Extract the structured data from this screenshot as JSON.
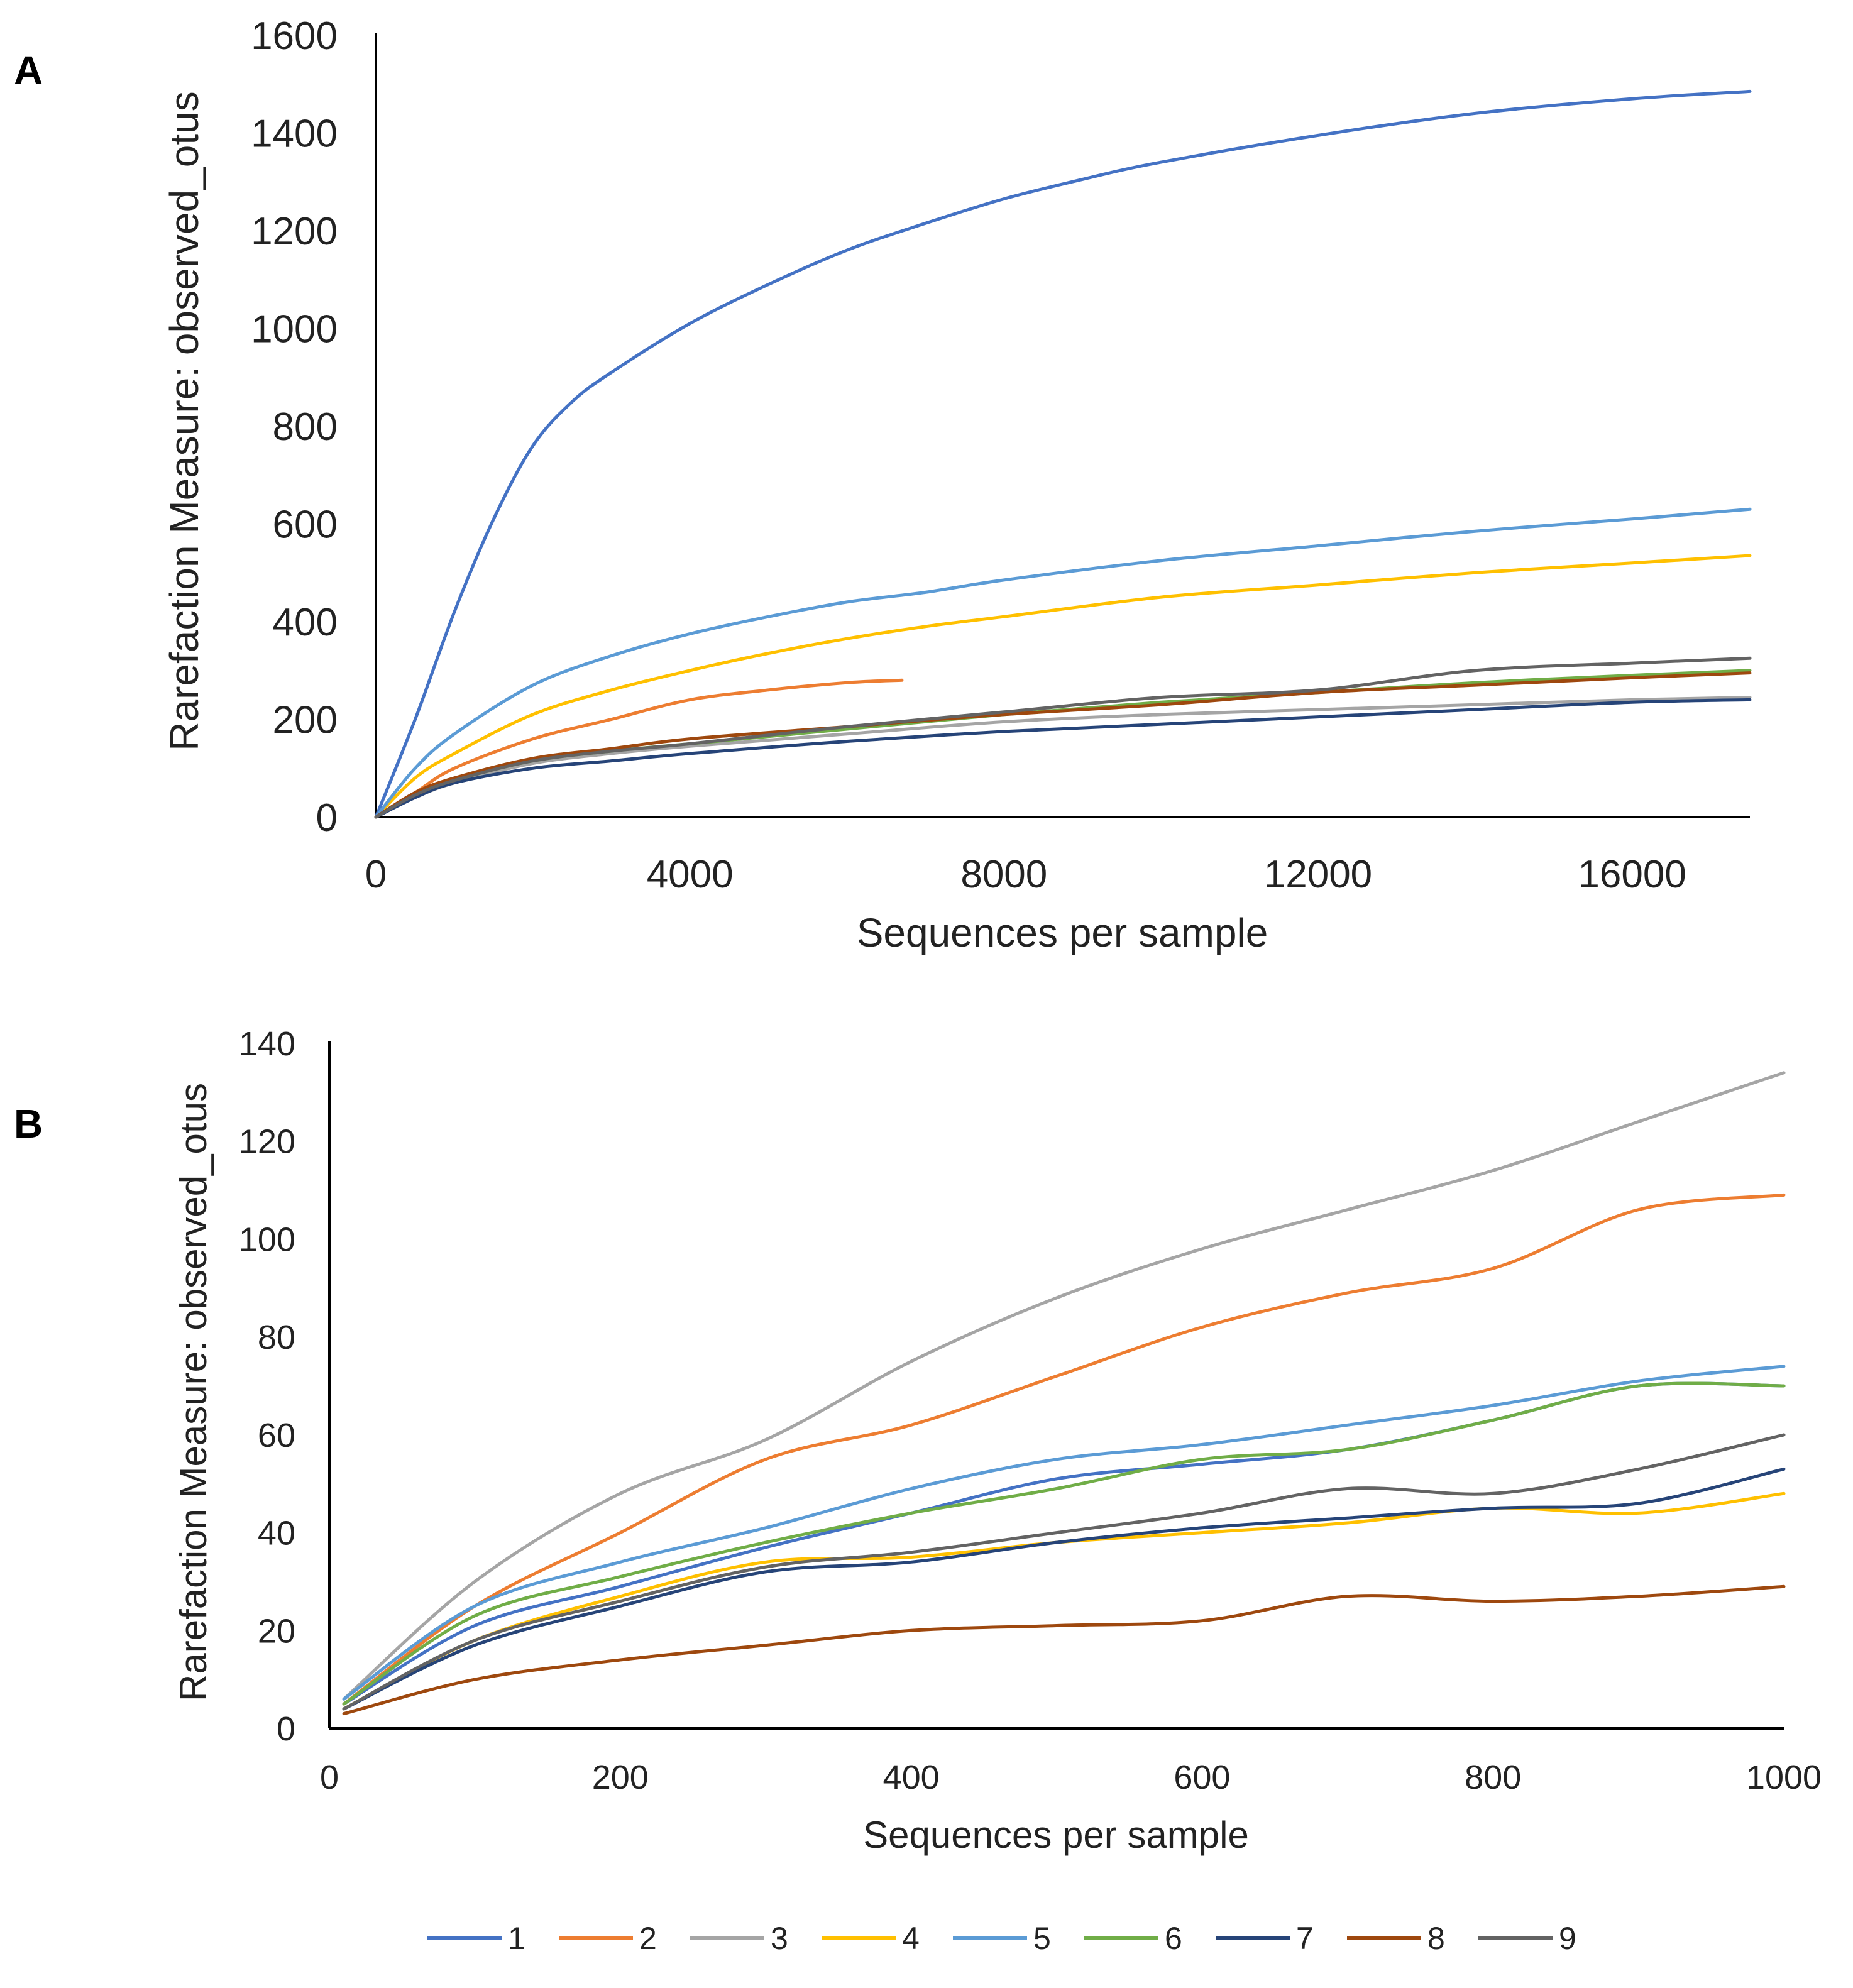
{
  "chart_data": [
    {
      "panel": "A",
      "type": "line",
      "xlabel": "Sequences per sample",
      "ylabel": "Rarefaction Measure: observed_otus",
      "xlim": [
        0,
        17500
      ],
      "ylim": [
        0,
        1600
      ],
      "xticks": [
        0,
        4000,
        8000,
        12000,
        16000
      ],
      "yticks": [
        0,
        200,
        400,
        600,
        800,
        1000,
        1200,
        1400,
        1600
      ],
      "series": [
        {
          "name": "1",
          "color": "#4472C4",
          "x": [
            0,
            500,
            1000,
            1500,
            2000,
            2500,
            3000,
            4000,
            5000,
            6000,
            7000,
            8000,
            9000,
            10000,
            12000,
            14000,
            16000,
            17500
          ],
          "values": [
            0,
            200,
            420,
            610,
            760,
            850,
            910,
            1010,
            1090,
            1160,
            1215,
            1265,
            1305,
            1340,
            1395,
            1440,
            1470,
            1485
          ]
        },
        {
          "name": "2",
          "color": "#ED7D31",
          "x": [
            0,
            500,
            1000,
            2000,
            3000,
            4000,
            5000,
            6000,
            6700
          ],
          "values": [
            0,
            50,
            100,
            160,
            200,
            240,
            260,
            275,
            280
          ]
        },
        {
          "name": "3",
          "color": "#A5A5A5",
          "x": [
            0,
            500,
            1000,
            2000,
            3000,
            4000,
            6000,
            8000,
            10000,
            12000,
            14000,
            16000,
            17500
          ],
          "values": [
            0,
            40,
            70,
            110,
            130,
            145,
            170,
            195,
            210,
            220,
            230,
            240,
            245
          ]
        },
        {
          "name": "4",
          "color": "#FFC000",
          "x": [
            0,
            500,
            1000,
            2000,
            3000,
            4000,
            5000,
            6000,
            7000,
            8000,
            10000,
            12000,
            14000,
            16000,
            17500
          ],
          "values": [
            0,
            80,
            130,
            210,
            260,
            300,
            335,
            365,
            390,
            410,
            450,
            475,
            500,
            520,
            535
          ]
        },
        {
          "name": "5",
          "color": "#5B9BD5",
          "x": [
            0,
            500,
            1000,
            2000,
            3000,
            4000,
            5000,
            6000,
            7000,
            8000,
            10000,
            12000,
            14000,
            16000,
            17500
          ],
          "values": [
            0,
            100,
            170,
            270,
            330,
            375,
            410,
            440,
            460,
            485,
            525,
            555,
            585,
            610,
            630
          ]
        },
        {
          "name": "6",
          "color": "#70AD47",
          "x": [
            0,
            500,
            1000,
            2000,
            3000,
            4000,
            6000,
            8000,
            10000,
            12000,
            14000,
            16000,
            17500
          ],
          "values": [
            0,
            45,
            75,
            115,
            135,
            150,
            180,
            210,
            235,
            255,
            275,
            290,
            300
          ]
        },
        {
          "name": "7",
          "color": "#264478",
          "x": [
            0,
            500,
            1000,
            2000,
            3000,
            4000,
            6000,
            8000,
            10000,
            12000,
            14000,
            16000,
            17500
          ],
          "values": [
            0,
            40,
            70,
            100,
            115,
            130,
            155,
            175,
            190,
            205,
            220,
            235,
            240
          ]
        },
        {
          "name": "8",
          "color": "#9E480E",
          "x": [
            0,
            500,
            1000,
            2000,
            3000,
            4000,
            6000,
            8000,
            10000,
            12000,
            14000,
            16000,
            17500
          ],
          "values": [
            0,
            50,
            80,
            120,
            140,
            160,
            185,
            210,
            230,
            255,
            270,
            285,
            295
          ]
        },
        {
          "name": "9",
          "color": "#636363",
          "x": [
            0,
            500,
            1000,
            2000,
            3000,
            4000,
            6000,
            8000,
            10000,
            12000,
            14000,
            16000,
            17500
          ],
          "values": [
            0,
            45,
            75,
            115,
            135,
            150,
            185,
            215,
            245,
            260,
            300,
            315,
            325
          ]
        }
      ]
    },
    {
      "panel": "B",
      "type": "line",
      "xlabel": "Sequences per sample",
      "ylabel": "Rarefaction Measure: observed_otus",
      "xlim": [
        0,
        1000
      ],
      "ylim": [
        0,
        140
      ],
      "xticks": [
        0,
        200,
        400,
        600,
        800,
        1000
      ],
      "yticks": [
        0,
        20,
        40,
        60,
        80,
        100,
        120,
        140
      ],
      "series": [
        {
          "name": "1",
          "color": "#4472C4",
          "x": [
            10,
            100,
            200,
            300,
            400,
            500,
            600,
            700,
            800,
            900,
            1000
          ],
          "values": [
            5,
            21,
            29,
            37,
            44,
            51,
            54,
            57,
            63,
            70,
            70
          ]
        },
        {
          "name": "2",
          "color": "#ED7D31",
          "x": [
            10,
            100,
            200,
            300,
            400,
            500,
            600,
            700,
            800,
            900,
            1000
          ],
          "values": [
            5,
            25,
            40,
            55,
            62,
            72,
            82,
            89,
            94,
            106,
            109
          ]
        },
        {
          "name": "3",
          "color": "#A5A5A5",
          "x": [
            10,
            100,
            200,
            300,
            400,
            500,
            600,
            700,
            800,
            900,
            1000
          ],
          "values": [
            6,
            30,
            48,
            59,
            75,
            88,
            98,
            106,
            114,
            124,
            134
          ]
        },
        {
          "name": "4",
          "color": "#FFC000",
          "x": [
            10,
            100,
            200,
            300,
            400,
            500,
            600,
            700,
            800,
            900,
            1000
          ],
          "values": [
            4,
            18,
            27,
            34,
            35,
            38,
            40,
            42,
            45,
            44,
            48
          ]
        },
        {
          "name": "5",
          "color": "#5B9BD5",
          "x": [
            10,
            100,
            200,
            300,
            400,
            500,
            600,
            700,
            800,
            900,
            1000
          ],
          "values": [
            6,
            25,
            34,
            41,
            49,
            55,
            58,
            62,
            66,
            71,
            74
          ]
        },
        {
          "name": "6",
          "color": "#70AD47",
          "x": [
            10,
            100,
            200,
            300,
            400,
            500,
            600,
            700,
            800,
            900,
            1000
          ],
          "values": [
            5,
            23,
            31,
            38,
            44,
            49,
            55,
            57,
            63,
            70,
            70
          ]
        },
        {
          "name": "7",
          "color": "#264478",
          "x": [
            10,
            100,
            200,
            300,
            400,
            500,
            600,
            700,
            800,
            900,
            1000
          ],
          "values": [
            4,
            17,
            25,
            32,
            34,
            38,
            41,
            43,
            45,
            46,
            53
          ]
        },
        {
          "name": "8",
          "color": "#9E480E",
          "x": [
            10,
            100,
            200,
            300,
            400,
            500,
            600,
            700,
            800,
            900,
            1000
          ],
          "values": [
            3,
            10,
            14,
            17,
            20,
            21,
            22,
            27,
            26,
            27,
            29
          ]
        },
        {
          "name": "9",
          "color": "#636363",
          "x": [
            10,
            100,
            200,
            300,
            400,
            500,
            600,
            700,
            800,
            900,
            1000
          ],
          "values": [
            4,
            18,
            26,
            33,
            36,
            40,
            44,
            49,
            48,
            53,
            60
          ]
        }
      ]
    }
  ],
  "legend": [
    "1",
    "2",
    "3",
    "4",
    "5",
    "6",
    "7",
    "8",
    "9"
  ]
}
